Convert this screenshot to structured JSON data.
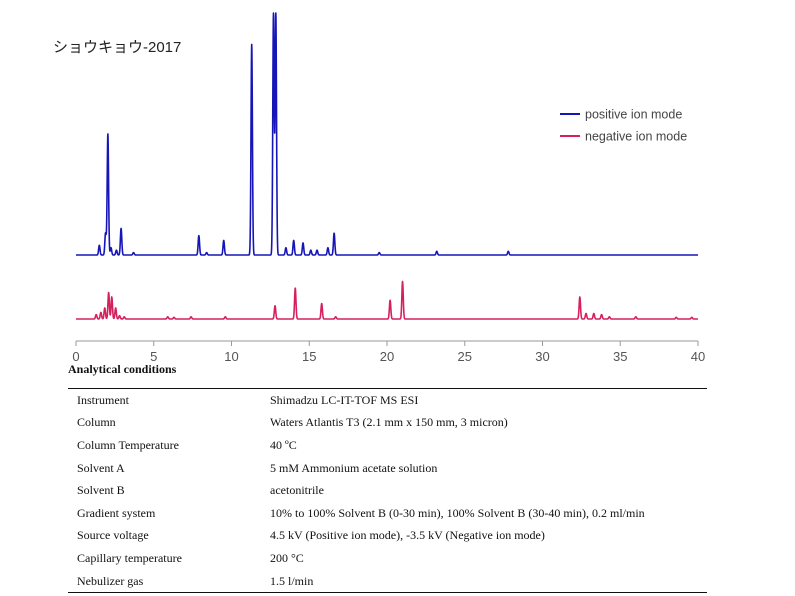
{
  "chart_data": {
    "type": "line",
    "title": "ショウキョウ-2017",
    "xlabel": "",
    "ylabel": "",
    "xlim": [
      0,
      40
    ],
    "x_ticks": [
      0,
      5,
      10,
      15,
      20,
      25,
      30,
      35,
      40
    ],
    "grid": false,
    "legend_position": "top-right",
    "series": [
      {
        "name": "positive ion mode",
        "color": "#1616b8",
        "peaks": [
          {
            "x": 1.5,
            "h": 0.04
          },
          {
            "x": 1.9,
            "h": 0.09
          },
          {
            "x": 2.05,
            "h": 0.5
          },
          {
            "x": 2.25,
            "h": 0.03
          },
          {
            "x": 2.6,
            "h": 0.02
          },
          {
            "x": 2.9,
            "h": 0.11
          },
          {
            "x": 3.7,
            "h": 0.01
          },
          {
            "x": 7.9,
            "h": 0.08
          },
          {
            "x": 8.4,
            "h": 0.01
          },
          {
            "x": 9.5,
            "h": 0.06
          },
          {
            "x": 11.3,
            "h": 0.87
          },
          {
            "x": 12.7,
            "h": 1.0
          },
          {
            "x": 12.85,
            "h": 1.0
          },
          {
            "x": 13.5,
            "h": 0.03
          },
          {
            "x": 14.0,
            "h": 0.06
          },
          {
            "x": 14.6,
            "h": 0.05
          },
          {
            "x": 15.1,
            "h": 0.02
          },
          {
            "x": 15.5,
            "h": 0.02
          },
          {
            "x": 16.2,
            "h": 0.03
          },
          {
            "x": 16.6,
            "h": 0.09
          },
          {
            "x": 19.5,
            "h": 0.01
          },
          {
            "x": 23.2,
            "h": 0.015
          },
          {
            "x": 27.8,
            "h": 0.015
          }
        ]
      },
      {
        "name": "negative ion mode",
        "color": "#d6205d",
        "peaks": [
          {
            "x": 1.3,
            "h": 0.04
          },
          {
            "x": 1.6,
            "h": 0.06
          },
          {
            "x": 1.85,
            "h": 0.1
          },
          {
            "x": 2.1,
            "h": 0.24
          },
          {
            "x": 2.3,
            "h": 0.2
          },
          {
            "x": 2.55,
            "h": 0.1
          },
          {
            "x": 2.8,
            "h": 0.03
          },
          {
            "x": 3.1,
            "h": 0.02
          },
          {
            "x": 5.9,
            "h": 0.02
          },
          {
            "x": 6.3,
            "h": 0.015
          },
          {
            "x": 7.4,
            "h": 0.02
          },
          {
            "x": 9.6,
            "h": 0.02
          },
          {
            "x": 12.8,
            "h": 0.12
          },
          {
            "x": 14.1,
            "h": 0.28
          },
          {
            "x": 15.8,
            "h": 0.14
          },
          {
            "x": 16.7,
            "h": 0.02
          },
          {
            "x": 20.2,
            "h": 0.17
          },
          {
            "x": 21.0,
            "h": 0.34
          },
          {
            "x": 32.4,
            "h": 0.2
          },
          {
            "x": 32.8,
            "h": 0.05
          },
          {
            "x": 33.3,
            "h": 0.05
          },
          {
            "x": 33.8,
            "h": 0.04
          },
          {
            "x": 34.3,
            "h": 0.02
          },
          {
            "x": 36.0,
            "h": 0.02
          },
          {
            "x": 38.6,
            "h": 0.015
          },
          {
            "x": 39.6,
            "h": 0.015
          }
        ]
      }
    ]
  },
  "conditions": {
    "heading": "Analytical conditions",
    "rows": [
      {
        "key": "Instrument",
        "value": "Shimadzu LC-IT-TOF MS ESI"
      },
      {
        "key": "Column",
        "value": "Waters Atlantis T3 (2.1 mm x 150 mm, 3 micron)"
      },
      {
        "key": "Column Temperature",
        "value": "40 ºC"
      },
      {
        "key": "Solvent A",
        "value": "5 mM Ammonium acetate solution"
      },
      {
        "key": "Solvent B",
        "value": "acetonitrile"
      },
      {
        "key": "Gradient system",
        "value": "10% to 100% Solvent B (0-30 min), 100% Solvent B (30-40 min), 0.2 ml/min"
      },
      {
        "key": "Source voltage",
        "value": "4.5 kV (Positive ion mode), -3.5 kV (Negative ion mode)"
      },
      {
        "key": "Capillary temperature",
        "value": "200 °C"
      },
      {
        "key": "Nebulizer gas",
        "value": "1.5 l/min"
      }
    ]
  }
}
